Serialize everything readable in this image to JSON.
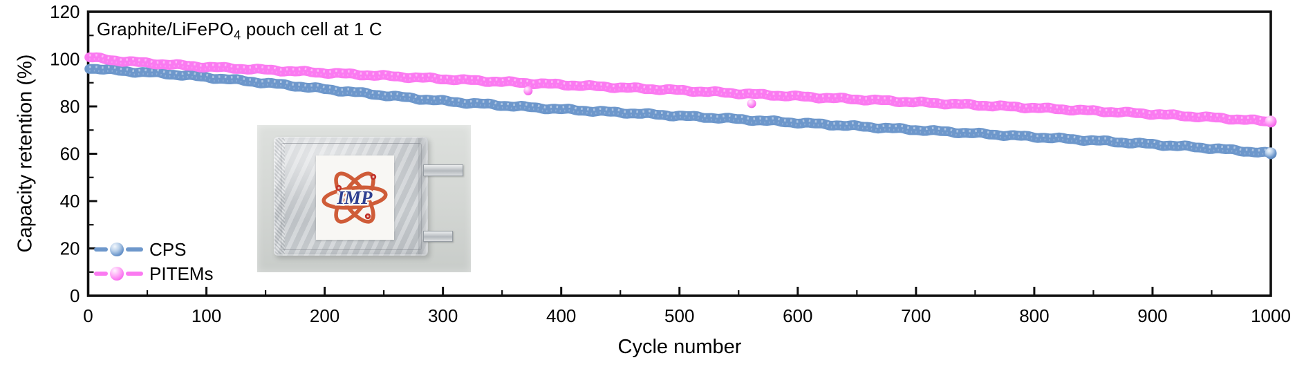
{
  "figure": {
    "annotation_pre": "Graphite/LiFePO",
    "annotation_sub": "4",
    "annotation_post": " pouch cell at 1 C"
  },
  "chart_data": {
    "type": "line",
    "title": "Graphite/LiFePO4 pouch cell at 1 C",
    "xlabel": "Cycle number",
    "ylabel": "Capacity retention (%)",
    "xlim": [
      0,
      1000
    ],
    "ylim": [
      0,
      120
    ],
    "xticks": [
      0,
      100,
      200,
      300,
      400,
      500,
      600,
      700,
      800,
      900,
      1000
    ],
    "yticks": [
      0,
      20,
      40,
      60,
      80,
      100,
      120
    ],
    "minor_xtick_step": 50,
    "minor_ytick_step": 10,
    "grid": false,
    "legend_position": "lower left",
    "series": [
      {
        "name": "CPS",
        "color": "#6d97cb",
        "points": [
          [
            1,
            96.2
          ],
          [
            20,
            95.3
          ],
          [
            40,
            94.6
          ],
          [
            60,
            94.0
          ],
          [
            80,
            93.2
          ],
          [
            100,
            92.3
          ],
          [
            120,
            91.4
          ],
          [
            140,
            90.4
          ],
          [
            160,
            89.4
          ],
          [
            180,
            88.4
          ],
          [
            200,
            87.3
          ],
          [
            220,
            86.3
          ],
          [
            240,
            85.2
          ],
          [
            260,
            84.2
          ],
          [
            280,
            83.2
          ],
          [
            300,
            82.3
          ],
          [
            320,
            81.5
          ],
          [
            340,
            80.8
          ],
          [
            360,
            80.1
          ],
          [
            380,
            79.4
          ],
          [
            400,
            78.8
          ],
          [
            450,
            77.4
          ],
          [
            500,
            76.0
          ],
          [
            550,
            74.6
          ],
          [
            600,
            73.1
          ],
          [
            650,
            71.6
          ],
          [
            700,
            70.1
          ],
          [
            750,
            68.6
          ],
          [
            800,
            67.1
          ],
          [
            850,
            65.6
          ],
          [
            900,
            64.0
          ],
          [
            950,
            62.3
          ],
          [
            1000,
            60.2
          ]
        ]
      },
      {
        "name": "PITEMs",
        "color": "#fb7af1",
        "points": [
          [
            1,
            100.8
          ],
          [
            20,
            99.6
          ],
          [
            40,
            98.7
          ],
          [
            60,
            98.0
          ],
          [
            80,
            97.3
          ],
          [
            100,
            96.7
          ],
          [
            120,
            96.2
          ],
          [
            140,
            95.7
          ],
          [
            160,
            95.2
          ],
          [
            180,
            94.7
          ],
          [
            200,
            94.2
          ],
          [
            250,
            92.9
          ],
          [
            300,
            91.6
          ],
          [
            350,
            90.4
          ],
          [
            400,
            89.2
          ],
          [
            450,
            88.0
          ],
          [
            500,
            86.8
          ],
          [
            550,
            85.5
          ],
          [
            600,
            84.2
          ],
          [
            650,
            83.0
          ],
          [
            700,
            81.8
          ],
          [
            750,
            80.6
          ],
          [
            800,
            79.4
          ],
          [
            850,
            78.1
          ],
          [
            900,
            76.8
          ],
          [
            950,
            75.3
          ],
          [
            1000,
            73.6
          ]
        ],
        "outlier_points": [
          [
            372,
            86.6
          ],
          [
            561,
            81.2
          ]
        ]
      }
    ]
  },
  "inset": {
    "logo_text": "IMP"
  },
  "colors": {
    "axis": "#0f0f0f",
    "background": "#ffffff",
    "cps_blue": "#6d97cb",
    "pitems_pink": "#fb7af1"
  }
}
